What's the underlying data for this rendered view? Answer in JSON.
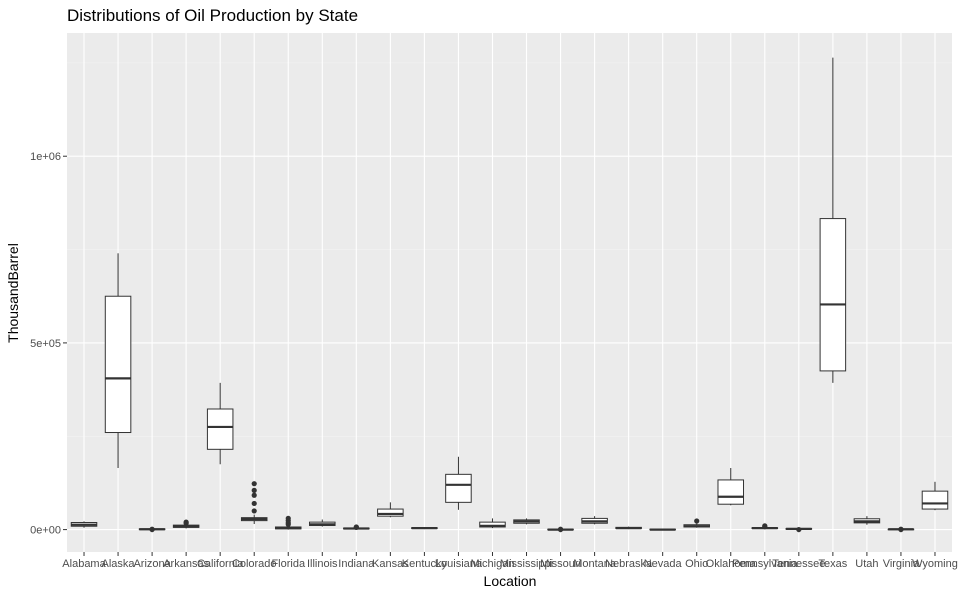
{
  "chart_data": {
    "type": "boxplot",
    "title": "Distributions of Oil Production by State",
    "xlabel": "Location",
    "ylabel": "ThousandBarrel",
    "ylim": [
      -60000,
      1330000
    ],
    "yticks": [
      {
        "value": 0,
        "label": "0e+00"
      },
      {
        "value": 500000,
        "label": "5e+05"
      },
      {
        "value": 1000000,
        "label": "1e+06"
      }
    ],
    "grid": true,
    "legend": "none",
    "categories": [
      "Alabama",
      "Alaska",
      "Arizona",
      "Arkansas",
      "California",
      "Colorado",
      "Florida",
      "Illinois",
      "Indiana",
      "Kansas",
      "Kentucky",
      "Louisiana",
      "Michigan",
      "Mississippi",
      "Missouri",
      "Montana",
      "Nebraska",
      "Nevada",
      "Ohio",
      "Oklahoma",
      "Pennsylvania",
      "Tennessee",
      "Texas",
      "Utah",
      "Virginia",
      "Wyoming"
    ],
    "boxes": [
      {
        "min": 5000,
        "q1": 9000,
        "median": 13000,
        "q3": 19000,
        "max": 22000,
        "outliers": []
      },
      {
        "min": 165000,
        "q1": 260000,
        "median": 405000,
        "q3": 625000,
        "max": 740000,
        "outliers": []
      },
      {
        "min": 0,
        "q1": 0,
        "median": 1000,
        "q3": 2000,
        "max": 3000,
        "outliers": [
          0,
          1000
        ]
      },
      {
        "min": 3000,
        "q1": 6000,
        "median": 8000,
        "q3": 12000,
        "max": 15000,
        "outliers": [
          17000,
          20000
        ]
      },
      {
        "min": 175000,
        "q1": 215000,
        "median": 275000,
        "q3": 323000,
        "max": 393000,
        "outliers": []
      },
      {
        "min": 15000,
        "q1": 24000,
        "median": 28000,
        "q3": 32000,
        "max": 40000,
        "outliers": [
          50000,
          70000,
          92000,
          105000,
          123000
        ]
      },
      {
        "min": 0,
        "q1": 2000,
        "median": 4000,
        "q3": 7000,
        "max": 10000,
        "outliers": [
          14000,
          18000,
          24000,
          30000
        ]
      },
      {
        "min": 8000,
        "q1": 11000,
        "median": 14000,
        "q3": 20000,
        "max": 27000,
        "outliers": []
      },
      {
        "min": 1000,
        "q1": 2000,
        "median": 3000,
        "q3": 4000,
        "max": 5000,
        "outliers": [
          6000,
          7000
        ]
      },
      {
        "min": 33000,
        "q1": 36000,
        "median": 42000,
        "q3": 55000,
        "max": 73000,
        "outliers": []
      },
      {
        "min": 2000,
        "q1": 3000,
        "median": 4000,
        "q3": 5000,
        "max": 6000,
        "outliers": []
      },
      {
        "min": 53000,
        "q1": 73000,
        "median": 120000,
        "q3": 148000,
        "max": 195000,
        "outliers": []
      },
      {
        "min": 4000,
        "q1": 7000,
        "median": 10000,
        "q3": 20000,
        "max": 30000,
        "outliers": []
      },
      {
        "min": 14000,
        "q1": 17000,
        "median": 22000,
        "q3": 26000,
        "max": 30000,
        "outliers": []
      },
      {
        "min": 0,
        "q1": 0,
        "median": 0,
        "q3": 1000,
        "max": 2000,
        "outliers": [
          0,
          1000
        ]
      },
      {
        "min": 14000,
        "q1": 17000,
        "median": 22000,
        "q3": 30000,
        "max": 36000,
        "outliers": []
      },
      {
        "min": 2000,
        "q1": 3000,
        "median": 4000,
        "q3": 6000,
        "max": 8000,
        "outliers": []
      },
      {
        "min": 0,
        "q1": 0,
        "median": 0,
        "q3": 1000,
        "max": 2000,
        "outliers": []
      },
      {
        "min": 5000,
        "q1": 7000,
        "median": 9000,
        "q3": 13000,
        "max": 16000,
        "outliers": [
          23000
        ]
      },
      {
        "min": 65000,
        "q1": 68000,
        "median": 88000,
        "q3": 133000,
        "max": 165000,
        "outliers": []
      },
      {
        "min": 2000,
        "q1": 3000,
        "median": 4000,
        "q3": 5000,
        "max": 6000,
        "outliers": [
          8000,
          10000
        ]
      },
      {
        "min": 0,
        "q1": 1000,
        "median": 2000,
        "q3": 3000,
        "max": 4000,
        "outliers": [
          0
        ]
      },
      {
        "min": 393000,
        "q1": 425000,
        "median": 603000,
        "q3": 833000,
        "max": 1264000,
        "outliers": []
      },
      {
        "min": 13000,
        "q1": 18000,
        "median": 22000,
        "q3": 29000,
        "max": 36000,
        "outliers": []
      },
      {
        "min": 0,
        "q1": 0,
        "median": 1000,
        "q3": 1000,
        "max": 2000,
        "outliers": [
          0,
          1000
        ]
      },
      {
        "min": 52000,
        "q1": 55000,
        "median": 70000,
        "q3": 103000,
        "max": 128000,
        "outliers": []
      }
    ]
  },
  "colors": {
    "panel": "#ebebeb",
    "grid_major": "#ffffff",
    "grid_minor": "#f4f4f4",
    "box_fill": "#ffffff",
    "box_stroke": "#333333",
    "tick_text": "#4d4d4d",
    "tick_mark": "#333333"
  }
}
